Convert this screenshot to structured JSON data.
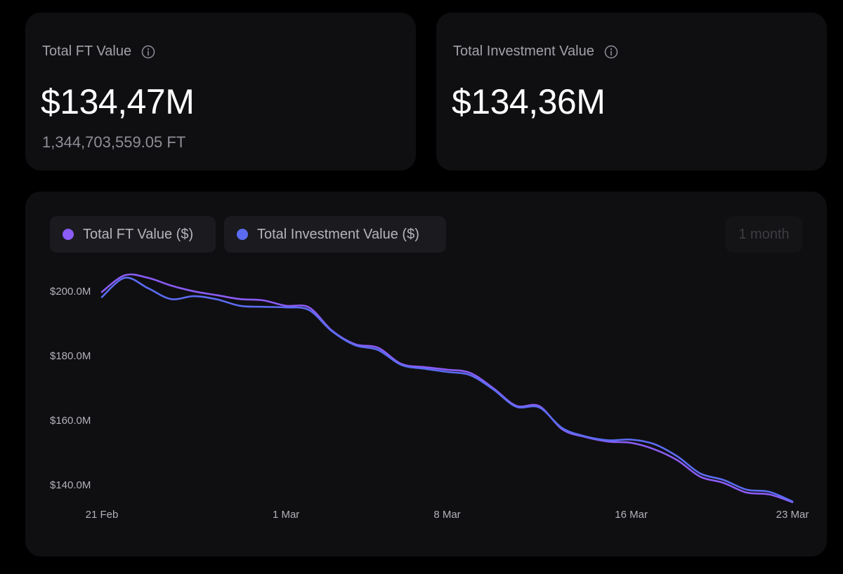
{
  "cards": {
    "ft": {
      "title": "Total FT Value",
      "value": "$134,47M",
      "sub": "1,344,703,559.05 FT"
    },
    "investment": {
      "title": "Total Investment Value",
      "value": "$134,36M"
    }
  },
  "legend": {
    "ft_label": "Total FT Value ($)",
    "investment_label": "Total Investment Value ($)",
    "range_label": "1 month"
  },
  "colors": {
    "ft": "#8b5cf6",
    "investment": "#5b6cf2"
  },
  "chart_data": {
    "type": "line",
    "title": "",
    "xlabel": "",
    "ylabel": "",
    "ylim": [
      133,
      207
    ],
    "x_range": [
      "2025-02-21",
      "2025-03-23"
    ],
    "x_ticks": [
      {
        "date": "2025-02-21",
        "label": "21 Feb"
      },
      {
        "date": "2025-03-01",
        "label": "1 Mar"
      },
      {
        "date": "2025-03-08",
        "label": "8 Mar"
      },
      {
        "date": "2025-03-16",
        "label": "16 Mar"
      },
      {
        "date": "2025-03-23",
        "label": "23 Mar"
      }
    ],
    "y_ticks": [
      {
        "value": 200,
        "label": "$200.0M"
      },
      {
        "value": 180,
        "label": "$180.0M"
      },
      {
        "value": 160,
        "label": "$160.0M"
      },
      {
        "value": 140,
        "label": "$140.0M"
      }
    ],
    "series": [
      {
        "name": "Total FT Value ($)",
        "color": "#8b5cf6",
        "points": [
          [
            "2025-02-21",
            199.8
          ],
          [
            "2025-02-22",
            205.0
          ],
          [
            "2025-02-23",
            204.2
          ],
          [
            "2025-02-24",
            201.8
          ],
          [
            "2025-02-25",
            200.0
          ],
          [
            "2025-02-26",
            198.8
          ],
          [
            "2025-02-27",
            197.6
          ],
          [
            "2025-02-28",
            197.2
          ],
          [
            "2025-03-01",
            195.5
          ],
          [
            "2025-03-02",
            195.0
          ],
          [
            "2025-03-03",
            187.8
          ],
          [
            "2025-03-04",
            183.6
          ],
          [
            "2025-03-05",
            182.5
          ],
          [
            "2025-03-06",
            177.5
          ],
          [
            "2025-03-07",
            176.5
          ],
          [
            "2025-03-08",
            175.7
          ],
          [
            "2025-03-09",
            174.7
          ],
          [
            "2025-03-10",
            170.0
          ],
          [
            "2025-03-11",
            164.5
          ],
          [
            "2025-03-12",
            164.4
          ],
          [
            "2025-03-13",
            157.2
          ],
          [
            "2025-03-14",
            154.8
          ],
          [
            "2025-03-15",
            153.4
          ],
          [
            "2025-03-16",
            153.0
          ],
          [
            "2025-03-17",
            151.0
          ],
          [
            "2025-03-18",
            147.6
          ],
          [
            "2025-03-19",
            142.5
          ],
          [
            "2025-03-20",
            140.6
          ],
          [
            "2025-03-21",
            137.6
          ],
          [
            "2025-03-22",
            137.0
          ],
          [
            "2025-03-23",
            134.6
          ]
        ]
      },
      {
        "name": "Total Investment Value ($)",
        "color": "#5b6cf2",
        "points": [
          [
            "2025-02-21",
            198.2
          ],
          [
            "2025-02-22",
            204.2
          ],
          [
            "2025-02-23",
            201.0
          ],
          [
            "2025-02-24",
            197.6
          ],
          [
            "2025-02-25",
            198.5
          ],
          [
            "2025-02-26",
            197.5
          ],
          [
            "2025-02-27",
            195.5
          ],
          [
            "2025-02-28",
            195.2
          ],
          [
            "2025-03-01",
            195.0
          ],
          [
            "2025-03-02",
            194.2
          ],
          [
            "2025-03-03",
            187.6
          ],
          [
            "2025-03-04",
            183.3
          ],
          [
            "2025-03-05",
            181.8
          ],
          [
            "2025-03-06",
            177.2
          ],
          [
            "2025-03-07",
            176.0
          ],
          [
            "2025-03-08",
            175.0
          ],
          [
            "2025-03-09",
            174.0
          ],
          [
            "2025-03-10",
            169.6
          ],
          [
            "2025-03-11",
            164.2
          ],
          [
            "2025-03-12",
            164.0
          ],
          [
            "2025-03-13",
            157.6
          ],
          [
            "2025-03-14",
            155.0
          ],
          [
            "2025-03-15",
            153.8
          ],
          [
            "2025-03-16",
            154.0
          ],
          [
            "2025-03-17",
            152.6
          ],
          [
            "2025-03-18",
            148.8
          ],
          [
            "2025-03-19",
            143.5
          ],
          [
            "2025-03-20",
            141.5
          ],
          [
            "2025-03-21",
            138.5
          ],
          [
            "2025-03-22",
            137.8
          ],
          [
            "2025-03-23",
            134.8
          ]
        ]
      }
    ]
  }
}
